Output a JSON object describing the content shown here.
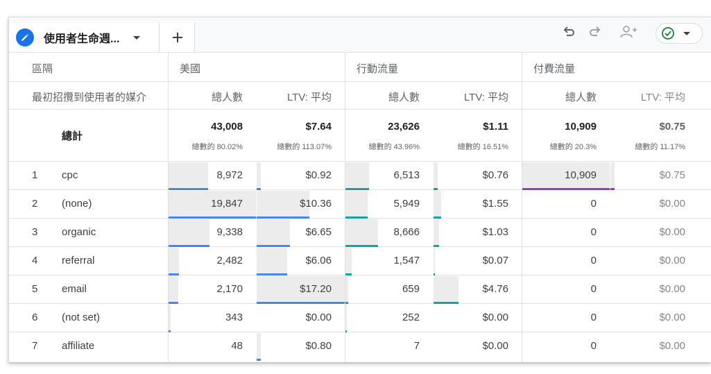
{
  "tab": {
    "label": "使用者生命週...",
    "add_label": "+"
  },
  "toolbar": {
    "undo": "undo-icon",
    "redo": "redo-icon",
    "share": "add-person-icon",
    "status": "check-circle-icon"
  },
  "colors": {
    "blue": "#4285f4",
    "teal": "#12a4a0",
    "purple": "#9334e6",
    "accent": "#1a73e8"
  },
  "header": {
    "segment_label": "區隔",
    "dimension_label": "最初招攬到使用者的媒介",
    "segments": [
      "美國",
      "行動流量",
      "付費流量"
    ],
    "metrics": [
      "總人數",
      "LTV: 平均"
    ]
  },
  "totals": {
    "label": "總計",
    "values": [
      {
        "value": "43,008",
        "sub": "總數的 80.02%"
      },
      {
        "value": "$7.64",
        "sub": "總數的 113.07%"
      },
      {
        "value": "23,626",
        "sub": "總數的 43.96%"
      },
      {
        "value": "$1.11",
        "sub": "總數的 16.51%"
      },
      {
        "value": "10,909",
        "sub": "總數的 20.3%"
      },
      {
        "value": "$0.75",
        "sub": "總數的 11.17%"
      }
    ]
  },
  "rows": [
    {
      "num": "1",
      "label": "cpc",
      "values": [
        "8,972",
        "$0.92",
        "6,513",
        "$0.76",
        "10,909",
        "$0.75"
      ],
      "fill": [
        0.45,
        0.05,
        0.27,
        0.05,
        1.0,
        0.05
      ]
    },
    {
      "num": "2",
      "label": "(none)",
      "values": [
        "19,847",
        "$10.36",
        "5,949",
        "$1.55",
        "0",
        "$0.00"
      ],
      "fill": [
        1.0,
        0.6,
        0.25,
        0.09,
        0,
        0
      ]
    },
    {
      "num": "3",
      "label": "organic",
      "values": [
        "9,338",
        "$6.65",
        "8,666",
        "$1.03",
        "0",
        "$0.00"
      ],
      "fill": [
        0.47,
        0.38,
        0.37,
        0.06,
        0,
        0
      ]
    },
    {
      "num": "4",
      "label": "referral",
      "values": [
        "2,482",
        "$6.06",
        "1,547",
        "$0.07",
        "0",
        "$0.00"
      ],
      "fill": [
        0.12,
        0.35,
        0.07,
        0.01,
        0,
        0
      ]
    },
    {
      "num": "5",
      "label": "email",
      "values": [
        "2,170",
        "$17.20",
        "659",
        "$4.76",
        "0",
        "$0.00"
      ],
      "fill": [
        0.11,
        1.0,
        0.03,
        0.28,
        0,
        0
      ]
    },
    {
      "num": "6",
      "label": "(not set)",
      "values": [
        "343",
        "$0.00",
        "252",
        "$0.00",
        "0",
        "$0.00"
      ],
      "fill": [
        0.02,
        0,
        0.01,
        0,
        0,
        0
      ]
    },
    {
      "num": "7",
      "label": "affiliate",
      "values": [
        "48",
        "$0.80",
        "7",
        "$0.00",
        "0",
        "$0.00"
      ],
      "fill": [
        0.0,
        0.05,
        0,
        0,
        0,
        0
      ]
    }
  ]
}
